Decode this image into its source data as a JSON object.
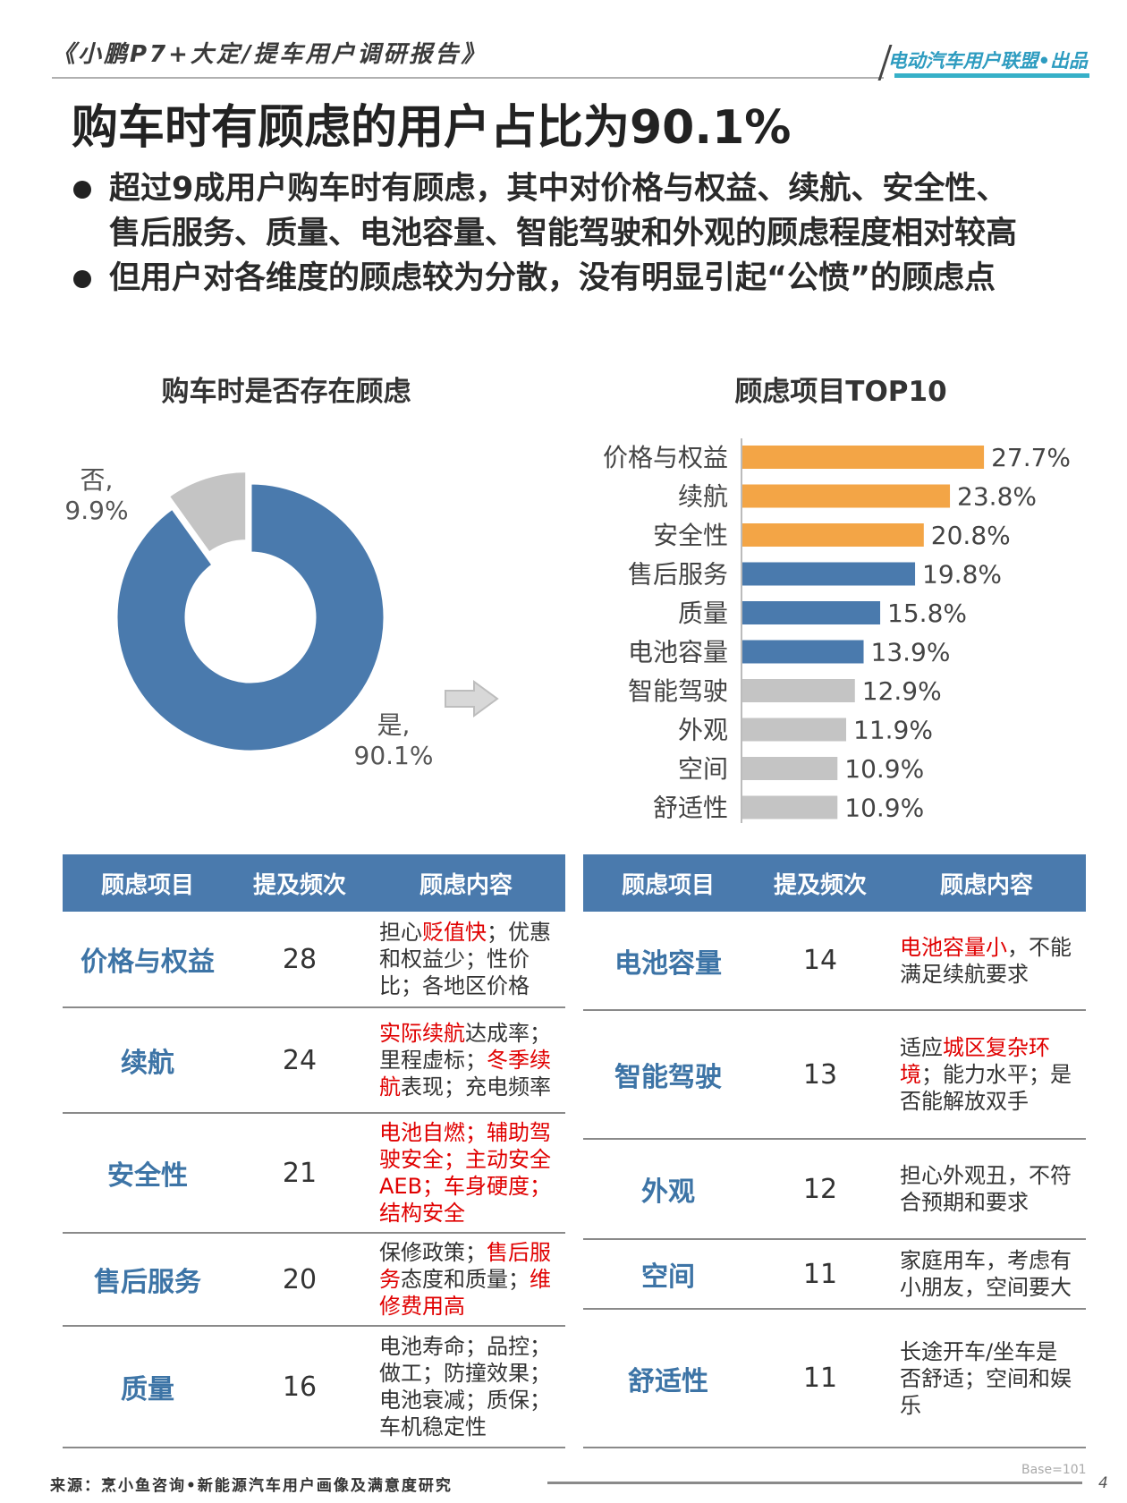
{
  "header": {
    "report_title": "《小鹏P7+大定/提车用户调研报告》",
    "brand": "电动汽车用户联盟•出品"
  },
  "page_title": "购车时有顾虑的用户占比为90.1%",
  "bullets": [
    {
      "line1": "超过9成用户购车时有顾虑，其中对价格与权益、续航、安全性、",
      "line2": "售后服务、质量、电池容量、智能驾驶和外观的顾虑程度相对较高"
    },
    {
      "line1": "但用户对各维度的顾虑较为分散，没有明显引起“公愤”的顾虑点"
    }
  ],
  "chart_data": [
    {
      "type": "pie",
      "title": "购车时是否存在顾虑",
      "slices": [
        {
          "label": "是,",
          "value": 90.1,
          "value_label": "90.1%",
          "color": "#4a7aad"
        },
        {
          "label": "否,",
          "value": 9.9,
          "value_label": "9.9%",
          "color": "#c4c4c4"
        }
      ]
    },
    {
      "type": "bar",
      "orientation": "horizontal",
      "title": "顾虑项目TOP10",
      "categories": [
        "价格与权益",
        "续航",
        "安全性",
        "售后服务",
        "质量",
        "电池容量",
        "智能驾驶",
        "外观",
        "空间",
        "舒适性"
      ],
      "values": [
        27.7,
        23.8,
        20.8,
        19.8,
        15.8,
        13.9,
        12.9,
        11.9,
        10.9,
        10.9
      ],
      "value_labels": [
        "27.7%",
        "23.8%",
        "20.8%",
        "19.8%",
        "15.8%",
        "13.9%",
        "12.9%",
        "11.9%",
        "10.9%",
        "10.9%"
      ],
      "colors": [
        "#f3a546",
        "#f3a546",
        "#f3a546",
        "#4a7aad",
        "#4a7aad",
        "#4a7aad",
        "#c4c4c4",
        "#c4c4c4",
        "#c4c4c4",
        "#c4c4c4"
      ],
      "xlim": [
        0,
        30
      ]
    }
  ],
  "table_headers": [
    "顾虑项目",
    "提及频次",
    "顾虑内容"
  ],
  "table_left": [
    {
      "item": "价格与权益",
      "freq": "28",
      "content": [
        [
          "担心",
          false
        ],
        [
          "贬值快",
          true
        ],
        [
          "；优惠和权益少；性价比；各地区价格",
          false
        ]
      ]
    },
    {
      "item": "续航",
      "freq": "24",
      "content": [
        [
          "实际续航",
          true
        ],
        [
          "达成率；里程虚标；",
          false
        ],
        [
          "冬季续航",
          true
        ],
        [
          "表现；充电频率",
          false
        ]
      ]
    },
    {
      "item": "安全性",
      "freq": "21",
      "content": [
        [
          "电池自燃；辅助驾驶安全；主动安全AEB；车身硬度；结构安全",
          true
        ]
      ]
    },
    {
      "item": "售后服务",
      "freq": "20",
      "content": [
        [
          "保修政策；",
          false
        ],
        [
          "售后服务",
          true
        ],
        [
          "态度和质量；",
          false
        ],
        [
          "维修费用高",
          true
        ]
      ]
    },
    {
      "item": "质量",
      "freq": "16",
      "content": [
        [
          "电池寿命；品控；做工；防撞效果；电池衰减；质保；车机稳定性",
          false
        ]
      ]
    }
  ],
  "table_right": [
    {
      "item": "电池容量",
      "freq": "14",
      "content": [
        [
          "电池容量小",
          true
        ],
        [
          "，不能满足续航要求",
          false
        ]
      ]
    },
    {
      "item": "智能驾驶",
      "freq": "13",
      "content": [
        [
          "适应",
          false
        ],
        [
          "城区复杂环境",
          true
        ],
        [
          "；能力水平；是否能解放双手",
          false
        ]
      ]
    },
    {
      "item": "外观",
      "freq": "12",
      "content": [
        [
          "担心外观丑，不符合预期和要求",
          false
        ]
      ]
    },
    {
      "item": "空间",
      "freq": "11",
      "content": [
        [
          "家庭用车，考虑有小朋友，空间要大",
          false
        ]
      ]
    },
    {
      "item": "舒适性",
      "freq": "11",
      "content": [
        [
          "长途开车/坐车是否舒适；空间和娱乐",
          false
        ]
      ]
    }
  ],
  "footer": {
    "source": "来源：烹小鱼咨询•新能源汽车用户画像及满意度研究",
    "base": "Base=101",
    "page": "4"
  }
}
